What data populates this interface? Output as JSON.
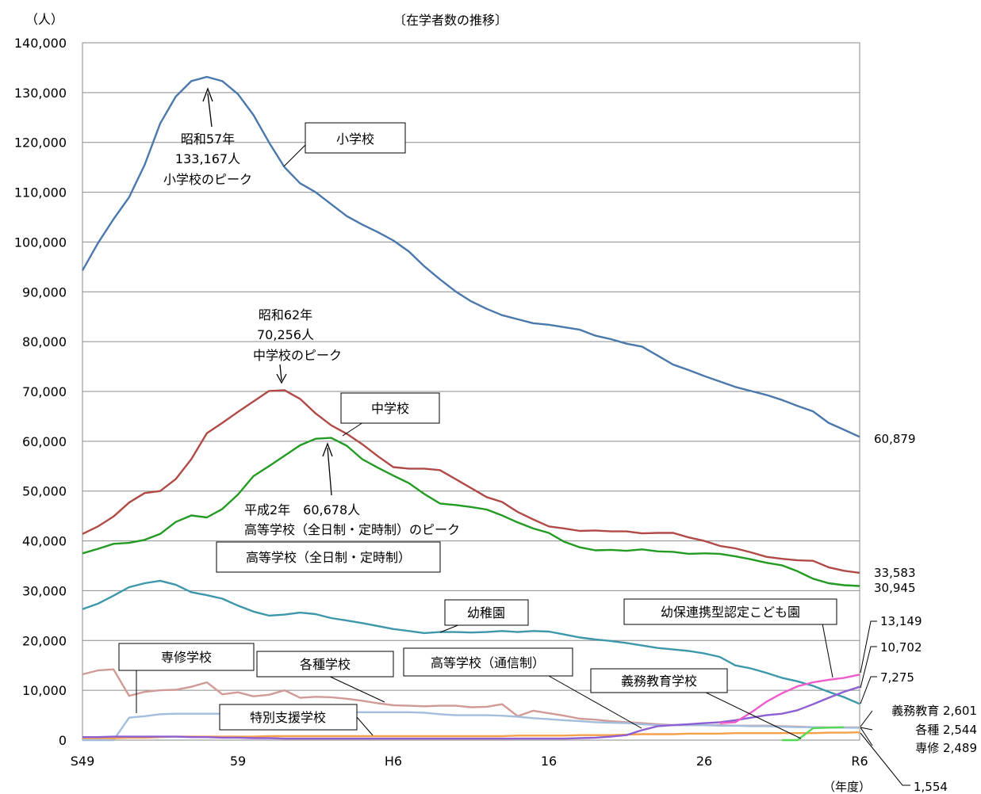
{
  "chart_data": {
    "type": "line",
    "title": "〔在学者数の推移〕",
    "ylabel": "（人）",
    "xlabel": "（年度）",
    "ylim": [
      0,
      140000
    ],
    "yticks": [
      "0",
      "10,000",
      "20,000",
      "30,000",
      "40,000",
      "50,000",
      "60,000",
      "70,000",
      "80,000",
      "90,000",
      "100,000",
      "110,000",
      "120,000",
      "130,000",
      "140,000"
    ],
    "xrange": [
      1974,
      2024
    ],
    "xticks": [
      {
        "year": 1974,
        "label": "S49"
      },
      {
        "year": 1984,
        "label": "59"
      },
      {
        "year": 1994,
        "label": "H6"
      },
      {
        "year": 2004,
        "label": "16"
      },
      {
        "year": 2014,
        "label": "26"
      },
      {
        "year": 2024,
        "label": "R6"
      }
    ],
    "grid": true,
    "series": [
      {
        "key": "elementary",
        "name": "小学校",
        "color": "#4a78ad",
        "start": 1974,
        "values": [
          94300,
          99800,
          104600,
          109000,
          115500,
          123800,
          129200,
          132300,
          133167,
          132300,
          129700,
          125500,
          120000,
          115000,
          111800,
          110000,
          107600,
          105200,
          103500,
          102000,
          100300,
          98100,
          95100,
          92500,
          90100,
          88100,
          86600,
          85300,
          84500,
          83700,
          83400,
          82900,
          82400,
          81200,
          80500,
          79600,
          79000,
          77200,
          75400,
          74300,
          73100,
          72000,
          70900,
          70100,
          69300,
          68300,
          67100,
          66000,
          63700,
          62300,
          60879
        ]
      },
      {
        "key": "junior",
        "name": "中学校",
        "color": "#b14a47",
        "start": 1974,
        "values": [
          41400,
          42900,
          44900,
          47700,
          49600,
          50000,
          52400,
          56400,
          61600,
          63700,
          65900,
          68000,
          70100,
          70256,
          68500,
          65600,
          63200,
          61500,
          59400,
          57000,
          54800,
          54500,
          54500,
          54200,
          52400,
          50600,
          48800,
          47800,
          45800,
          44300,
          42900,
          42500,
          42000,
          42100,
          41900,
          41900,
          41500,
          41600,
          41600,
          40700,
          40000,
          39000,
          38500,
          37700,
          36800,
          36400,
          36100,
          36000,
          34700,
          34000,
          33583
        ]
      },
      {
        "key": "high",
        "name": "高等学校（全日制・定時制）",
        "color": "#239b23",
        "start": 1974,
        "values": [
          37500,
          38400,
          39400,
          39600,
          40200,
          41400,
          43800,
          45100,
          44700,
          46400,
          49300,
          53000,
          55000,
          57100,
          59200,
          60500,
          60678,
          59100,
          56400,
          54700,
          53100,
          51600,
          49400,
          47500,
          47200,
          46800,
          46300,
          45100,
          43700,
          42500,
          41600,
          39800,
          38700,
          38100,
          38200,
          38000,
          38300,
          37900,
          37800,
          37400,
          37500,
          37400,
          36900,
          36300,
          35600,
          35100,
          33900,
          32400,
          31500,
          31100,
          30945
        ]
      },
      {
        "key": "kindergarten",
        "name": "幼稚園",
        "color": "#3d97ab",
        "start": 1974,
        "values": [
          26300,
          27400,
          29000,
          30700,
          31500,
          32000,
          31200,
          29700,
          29100,
          28400,
          27000,
          25800,
          25000,
          25200,
          25600,
          25300,
          24500,
          24000,
          23500,
          22900,
          22300,
          21900,
          21500,
          21700,
          21700,
          21600,
          21700,
          21900,
          21700,
          21900,
          21800,
          21200,
          20600,
          20200,
          19900,
          19500,
          19000,
          18500,
          18200,
          17900,
          17400,
          16700,
          15000,
          14400,
          13500,
          12500,
          11800,
          10900,
          9700,
          8600,
          7275
        ]
      },
      {
        "key": "misc",
        "name": "各種学校",
        "color": "#d09a96",
        "start": 1974,
        "values": [
          13200,
          14000,
          14200,
          8900,
          9700,
          10000,
          10100,
          10700,
          11600,
          9200,
          9600,
          8800,
          9100,
          10000,
          8500,
          8700,
          8600,
          8300,
          7900,
          7400,
          7000,
          6900,
          6800,
          6900,
          6900,
          6600,
          6700,
          7200,
          4800,
          5900,
          5400,
          4900,
          4300,
          4100,
          3800,
          3600,
          3400,
          3200,
          3000,
          3000,
          3000,
          3000,
          2900,
          2900,
          2900,
          2800,
          2700,
          2600,
          2550,
          2544,
          2544
        ]
      },
      {
        "key": "senshu",
        "name": "専修学校",
        "color": "#a3bddd",
        "start": 1974,
        "values": [
          0,
          0,
          0,
          4500,
          4800,
          5200,
          5300,
          5300,
          5300,
          5300,
          5300,
          5400,
          5500,
          5500,
          5500,
          5500,
          5600,
          5600,
          5600,
          5600,
          5600,
          5600,
          5500,
          5200,
          5000,
          5000,
          5000,
          4900,
          4700,
          4400,
          4200,
          4000,
          3800,
          3600,
          3500,
          3400,
          3200,
          3000,
          3000,
          3000,
          3000,
          2900,
          2900,
          2800,
          2800,
          2700,
          2600,
          2600,
          2500,
          2500,
          2489
        ]
      },
      {
        "key": "special",
        "name": "特別支援学校",
        "color": "#f5a04b",
        "start": 1974,
        "values": [
          400,
          400,
          400,
          500,
          500,
          600,
          700,
          700,
          700,
          700,
          700,
          700,
          800,
          800,
          800,
          800,
          800,
          800,
          800,
          800,
          800,
          800,
          800,
          800,
          800,
          800,
          800,
          800,
          900,
          900,
          900,
          900,
          1000,
          1000,
          1000,
          1100,
          1200,
          1200,
          1200,
          1300,
          1300,
          1300,
          1400,
          1400,
          1400,
          1400,
          1400,
          1400,
          1500,
          1500,
          1554
        ]
      },
      {
        "key": "tsushin",
        "name": "高等学校（通信制）",
        "color": "#8d5fd3",
        "start": 1974,
        "values": [
          600,
          600,
          700,
          700,
          700,
          700,
          700,
          600,
          600,
          500,
          500,
          400,
          400,
          300,
          300,
          300,
          300,
          300,
          300,
          300,
          300,
          300,
          300,
          300,
          300,
          300,
          300,
          300,
          300,
          300,
          300,
          300,
          400,
          500,
          700,
          1000,
          2000,
          2800,
          3000,
          3200,
          3400,
          3600,
          4000,
          4500,
          5000,
          5300,
          6000,
          7200,
          8500,
          9700,
          10702
        ]
      },
      {
        "key": "kodomoen",
        "name": "幼保連携型認定こども園",
        "color": "#f05bcb",
        "start": 2015,
        "values": [
          3400,
          3600,
          5500,
          7700,
          9400,
          10800,
          11600,
          12100,
          12500,
          13149
        ]
      },
      {
        "key": "gimu",
        "name": "義務教育学校",
        "color": "#55d855",
        "start": 2019,
        "values": [
          0,
          0,
          2400,
          2500,
          2601
        ]
      }
    ],
    "annotations": {
      "peak_elem": [
        "昭和57年",
        "133,167人",
        "小学校のピーク"
      ],
      "peak_junior": [
        "昭和62年",
        "70,256人",
        "中学校のピーク"
      ],
      "peak_high": [
        "平成2年　60,678人",
        "高等学校（全日制・定時制）のピーク"
      ]
    },
    "end_labels": {
      "elementary": "60,879",
      "junior": "33,583",
      "high": "30,945",
      "kodomoen": "13,149",
      "tsushin": "10,702",
      "kindergarten": "7,275",
      "gimu": "義務教育 2,601",
      "misc": "各種 2,544",
      "senshu": "専修 2,489",
      "special": "1,554"
    }
  }
}
